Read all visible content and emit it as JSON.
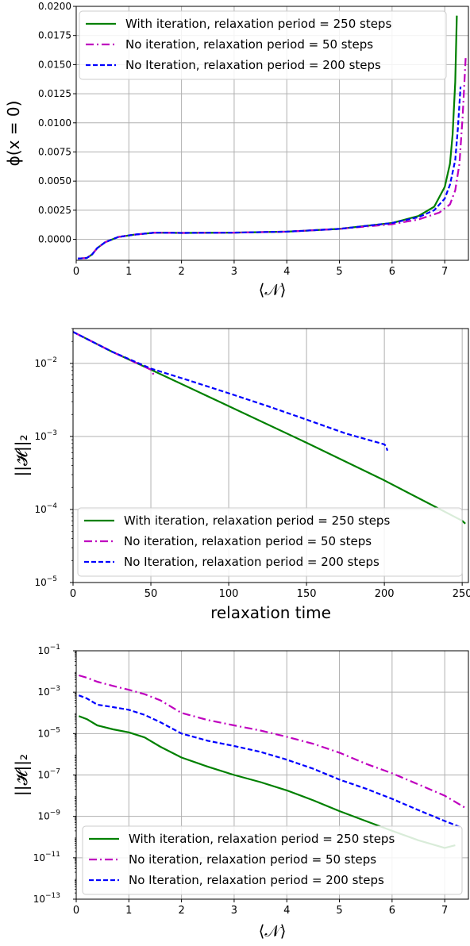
{
  "colors": {
    "green": "#008000",
    "magenta": "#bf00bf",
    "blue": "#0000ff",
    "grid": "#b0b0b0"
  },
  "chart_data": [
    {
      "type": "line",
      "xlabel": "⟨𝒩⟩",
      "ylabel": "ϕ(x = 0)",
      "xlim": [
        0,
        7.45
      ],
      "ylim": [
        -0.0018,
        0.02
      ],
      "yscale": "linear",
      "grid": true,
      "legend_position": "top-left",
      "xticks": [
        "0",
        "1",
        "2",
        "3",
        "4",
        "5",
        "6",
        "7"
      ],
      "yticks": [
        "−0.0025",
        "0.0000",
        "0.0025",
        "0.0050",
        "0.0075",
        "0.0100",
        "0.0125",
        "0.0150",
        "0.0175",
        "0.0200"
      ],
      "series": [
        {
          "name": "With iteration, relaxation period = 250 steps",
          "color": "green",
          "dash": "solid",
          "x": [
            0.03,
            0.2,
            0.3,
            0.4,
            0.55,
            0.8,
            1.1,
            1.5,
            2,
            3,
            4,
            5,
            6,
            6.5,
            6.8,
            7.0,
            7.1,
            7.15,
            7.2,
            7.23
          ],
          "y": [
            -0.00165,
            -0.0016,
            -0.0013,
            -0.00075,
            -0.00025,
            0.0002,
            0.0004,
            0.00058,
            0.00055,
            0.00058,
            0.00066,
            0.0009,
            0.0014,
            0.002,
            0.0028,
            0.0045,
            0.0065,
            0.009,
            0.0135,
            0.0192
          ]
        },
        {
          "name": "No iteration, relaxation period = 50 steps",
          "color": "magenta",
          "dash": "dashdot",
          "x": [
            0.03,
            0.2,
            0.3,
            0.4,
            0.55,
            0.8,
            1.1,
            1.5,
            2,
            3,
            4,
            5,
            6,
            6.5,
            6.9,
            7.1,
            7.2,
            7.28,
            7.34,
            7.4
          ],
          "y": [
            -0.00165,
            -0.0016,
            -0.0013,
            -0.00075,
            -0.00025,
            0.0002,
            0.0004,
            0.00058,
            0.00055,
            0.00058,
            0.00066,
            0.0009,
            0.0013,
            0.0017,
            0.0023,
            0.003,
            0.0042,
            0.0065,
            0.0105,
            0.0158
          ]
        },
        {
          "name": "No Iteration, relaxation period = 200 steps",
          "color": "blue",
          "dash": "dashed",
          "x": [
            0.03,
            0.2,
            0.3,
            0.4,
            0.55,
            0.8,
            1.1,
            1.5,
            2,
            3,
            4,
            5,
            6,
            6.5,
            6.8,
            7.0,
            7.1,
            7.2,
            7.25,
            7.3
          ],
          "y": [
            -0.00165,
            -0.0016,
            -0.0013,
            -0.00075,
            -0.00025,
            0.0002,
            0.0004,
            0.00058,
            0.00055,
            0.00058,
            0.00066,
            0.0009,
            0.0014,
            0.0019,
            0.0025,
            0.0035,
            0.0047,
            0.0068,
            0.0095,
            0.0131
          ]
        }
      ]
    },
    {
      "type": "line",
      "xlabel": "relaxation time",
      "ylabel": "||𝓗||₂",
      "xlim": [
        0,
        254
      ],
      "ylim": [
        1e-05,
        0.03
      ],
      "yscale": "log",
      "grid": true,
      "legend_position": "bottom-center",
      "xticks": [
        "0",
        "50",
        "100",
        "150",
        "200",
        "250"
      ],
      "yticks": [
        [
          "10",
          "−5"
        ],
        [
          "10",
          "−4"
        ],
        [
          "10",
          "−3"
        ],
        [
          "10",
          "−2"
        ]
      ],
      "series": [
        {
          "name": "With iteration, relaxation period = 250 steps",
          "color": "green",
          "dash": "solid",
          "x": [
            0,
            25,
            50,
            100,
            150,
            200,
            250,
            252
          ],
          "y": [
            0.027,
            0.0145,
            0.0082,
            0.0026,
            0.00082,
            0.00025,
            7e-05,
            6.4e-05
          ]
        },
        {
          "name": "No iteration, relaxation period = 50 steps",
          "color": "magenta",
          "dash": "dashdot",
          "x": [
            0,
            25,
            50,
            51,
            52
          ],
          "y": [
            0.027,
            0.0145,
            0.0082,
            0.0078,
            0.0065
          ]
        },
        {
          "name": "No Iteration, relaxation period = 200 steps",
          "color": "blue",
          "dash": "dashed",
          "x": [
            0,
            25,
            50,
            75,
            100,
            125,
            150,
            175,
            200,
            201,
            202
          ],
          "y": [
            0.027,
            0.0145,
            0.0085,
            0.0058,
            0.0039,
            0.0026,
            0.0017,
            0.0011,
            0.00078,
            0.00074,
            0.00064
          ]
        }
      ]
    },
    {
      "type": "line",
      "xlabel": "⟨𝒩⟩",
      "ylabel": "||𝓗||₂",
      "xlim": [
        0,
        7.45
      ],
      "ylim": [
        1e-13,
        0.1
      ],
      "yscale": "log",
      "grid": true,
      "legend_position": "bottom-center",
      "xticks": [
        "0",
        "1",
        "2",
        "3",
        "4",
        "5",
        "6",
        "7"
      ],
      "yticks": [
        [
          "10",
          "−13"
        ],
        [
          "10",
          "−11"
        ],
        [
          "10",
          "−9"
        ],
        [
          "10",
          "−7"
        ],
        [
          "10",
          "−5"
        ],
        [
          "10",
          "−3"
        ],
        [
          "10",
          "−1"
        ]
      ],
      "series": [
        {
          "name": "With iteration, relaxation period = 250 steps",
          "color": "green",
          "dash": "solid",
          "x": [
            0.05,
            0.2,
            0.4,
            0.7,
            1.0,
            1.3,
            1.6,
            2.0,
            2.5,
            3.0,
            3.5,
            4.0,
            4.5,
            5.0,
            5.5,
            6.0,
            6.5,
            7.0,
            7.2
          ],
          "y": [
            7e-05,
            5e-05,
            2.5e-05,
            1.6e-05,
            1.15e-05,
            6.5e-06,
            2.3e-06,
            7e-07,
            2.5e-07,
            1e-07,
            4.5e-08,
            1.8e-08,
            6e-09,
            1.8e-09,
            6e-10,
            2e-10,
            7e-11,
            3e-11,
            4e-11
          ]
        },
        {
          "name": "No iteration, relaxation period = 50 steps",
          "color": "magenta",
          "dash": "dashdot",
          "x": [
            0.05,
            0.2,
            0.4,
            0.7,
            1.0,
            1.3,
            1.6,
            2.0,
            2.5,
            3.0,
            3.5,
            4.0,
            4.5,
            5.0,
            5.5,
            6.0,
            6.5,
            7.0,
            7.4
          ],
          "y": [
            0.0065,
            0.005,
            0.0032,
            0.002,
            0.0013,
            0.0008,
            0.0004,
            0.0001,
            4.5e-05,
            2.5e-05,
            1.4e-05,
            7e-06,
            3.2e-06,
            1.2e-06,
            3.5e-07,
            1.2e-07,
            3.5e-08,
            1e-08,
            2.5e-09
          ]
        },
        {
          "name": "No Iteration, relaxation period = 200 steps",
          "color": "blue",
          "dash": "dashed",
          "x": [
            0.05,
            0.2,
            0.4,
            0.7,
            1.0,
            1.3,
            1.6,
            2.0,
            2.5,
            3.0,
            3.5,
            4.0,
            4.5,
            5.0,
            5.5,
            6.0,
            6.5,
            7.0,
            7.3
          ],
          "y": [
            0.0007,
            0.0005,
            0.00025,
            0.00019,
            0.00014,
            8e-05,
            3.5e-05,
            1e-05,
            4.5e-06,
            2.5e-06,
            1.3e-06,
            5.5e-07,
            2e-07,
            6e-08,
            2.2e-08,
            7e-09,
            2e-09,
            6e-10,
            3e-10
          ]
        }
      ]
    }
  ]
}
